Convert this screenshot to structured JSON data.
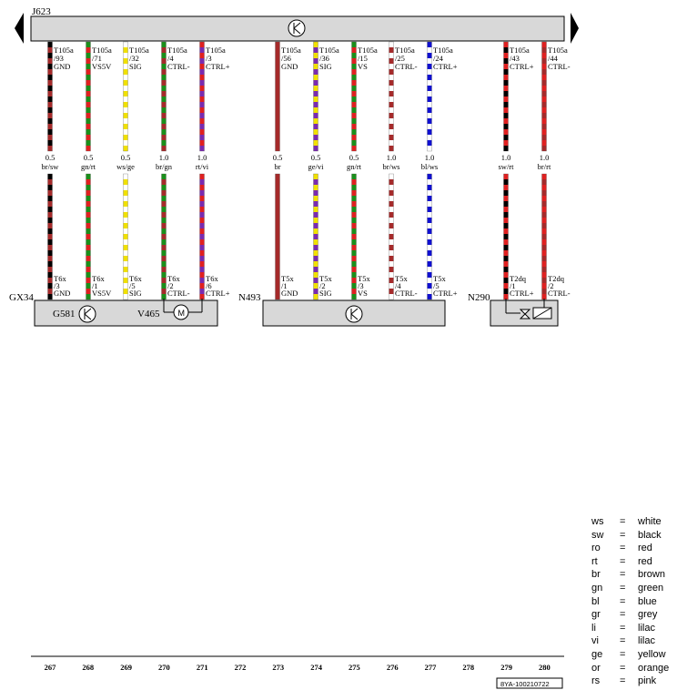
{
  "top_unit": {
    "name": "J623"
  },
  "pins": [
    {
      "upper": [
        "T105a",
        "/93",
        "GND"
      ],
      "spec": "0.5",
      "colour": "br/sw",
      "lower": [
        "T6x",
        "/3",
        "GND"
      ],
      "stripes": [
        "#000000",
        "#a52a2a"
      ]
    },
    {
      "upper": [
        "T105a",
        "/71",
        "VS5V"
      ],
      "spec": "0.5",
      "colour": "gn/rt",
      "lower": [
        "T6x",
        "/1",
        "VS5V"
      ],
      "stripes": [
        "#1a8f1a",
        "#e02020"
      ]
    },
    {
      "upper": [
        "T105a",
        "/32",
        "SIG"
      ],
      "spec": "0.5",
      "colour": "ws/ge",
      "lower": [
        "T6x",
        "/5",
        "SIG"
      ],
      "stripes": [
        "#ffffff",
        "#f0e000"
      ]
    },
    {
      "upper": [
        "T105a",
        "/4",
        "CTRL-"
      ],
      "spec": "1.0",
      "colour": "br/gn",
      "lower": [
        "T6x",
        "/2",
        "CTRL-"
      ],
      "stripes": [
        "#1a8f1a",
        "#a52a2a"
      ]
    },
    {
      "upper": [
        "T105a",
        "/3",
        "CTRL+"
      ],
      "spec": "1.0",
      "colour": "rt/vi",
      "lower": [
        "T6x",
        "/6",
        "CTRL+"
      ],
      "stripes": [
        "#e02020",
        "#7a2ab0"
      ]
    },
    {
      "upper": [
        "T105a",
        "/56",
        "GND"
      ],
      "spec": "0.5",
      "colour": "br",
      "lower": [
        "T5x",
        "/1",
        "GND"
      ],
      "stripes": [
        "#a52a2a",
        "#a52a2a"
      ]
    },
    {
      "upper": [
        "T105a",
        "/36",
        "SIG"
      ],
      "spec": "0.5",
      "colour": "ge/vi",
      "lower": [
        "T5x",
        "/2",
        "SIG"
      ],
      "stripes": [
        "#f0e000",
        "#7a2ab0"
      ]
    },
    {
      "upper": [
        "T105a",
        "/15",
        "VS"
      ],
      "spec": "0.5",
      "colour": "gn/rt",
      "lower": [
        "T5x",
        "/3",
        "VS"
      ],
      "stripes": [
        "#1a8f1a",
        "#e02020"
      ]
    },
    {
      "upper": [
        "T105a",
        "/25",
        "CTRL-"
      ],
      "spec": "1.0",
      "colour": "br/ws",
      "lower": [
        "T5x",
        "/4",
        "CTRL-"
      ],
      "stripes": [
        "#ffffff",
        "#a52a2a"
      ]
    },
    {
      "upper": [
        "T105a",
        "/24",
        "CTRL+"
      ],
      "spec": "1.0",
      "colour": "bl/ws",
      "lower": [
        "T5x",
        "/5",
        "CTRL+"
      ],
      "stripes": [
        "#1010d0",
        "#ffffff"
      ]
    },
    {
      "upper": [
        "T105a",
        "/43",
        "CTRL+"
      ],
      "spec": "1.0",
      "colour": "sw/rt",
      "lower": [
        "T2dq",
        "/1",
        "CTRL+"
      ],
      "stripes": [
        "#e02020",
        "#000000"
      ]
    },
    {
      "upper": [
        "T105a",
        "/44",
        "CTRL-"
      ],
      "spec": "1.0",
      "colour": "br/rt",
      "lower": [
        "T2dq",
        "/2",
        "CTRL-"
      ],
      "stripes": [
        "#e02020",
        "#a52a2a"
      ]
    }
  ],
  "components": [
    {
      "id": "GX34",
      "labels": [
        "G581",
        "V465"
      ]
    },
    {
      "id": "N493",
      "labels": []
    },
    {
      "id": "N290",
      "labels": []
    }
  ],
  "ruler": [
    "267",
    "268",
    "269",
    "270",
    "271",
    "272",
    "273",
    "274",
    "275",
    "276",
    "277",
    "278",
    "279",
    "280"
  ],
  "drawing_code": "8YA-100210722",
  "legend": [
    {
      "code": "ws",
      "eq": "=",
      "name": "white"
    },
    {
      "code": "sw",
      "eq": "=",
      "name": "black"
    },
    {
      "code": "ro",
      "eq": "=",
      "name": "red"
    },
    {
      "code": "rt",
      "eq": "=",
      "name": "red"
    },
    {
      "code": "br",
      "eq": "=",
      "name": "brown"
    },
    {
      "code": "gn",
      "eq": "=",
      "name": "green"
    },
    {
      "code": "bl",
      "eq": "=",
      "name": "blue"
    },
    {
      "code": "gr",
      "eq": "=",
      "name": "grey"
    },
    {
      "code": "li",
      "eq": "=",
      "name": "lilac"
    },
    {
      "code": "vi",
      "eq": "=",
      "name": "lilac"
    },
    {
      "code": "ge",
      "eq": "=",
      "name": "yellow"
    },
    {
      "code": "or",
      "eq": "=",
      "name": "orange"
    },
    {
      "code": "rs",
      "eq": "=",
      "name": "pink"
    }
  ]
}
